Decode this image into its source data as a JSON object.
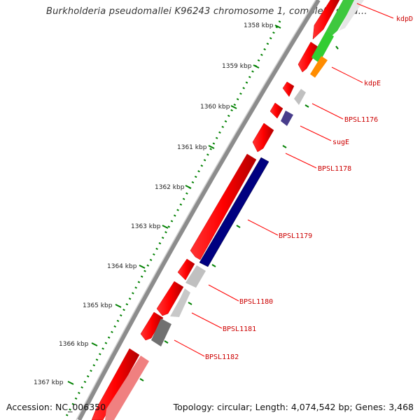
{
  "title": "Burkholderia pseudomallei K96243 chromosome 1, complete sequ...",
  "footer": {
    "accession": "Accession: NC_006350",
    "topology": "Topology: circular; Length: 4,074,542 bp; Genes: 3,468"
  },
  "ruler_ticks": [
    "1358 kbp",
    "1359 kbp",
    "1360 kbp",
    "1361 kbp",
    "1362 kbp",
    "1363 kbp",
    "1364 kbp",
    "1365 kbp",
    "1366 kbp",
    "1367 kbp"
  ],
  "gene_labels": [
    "kdpD",
    "kdpE",
    "BPSL1176",
    "sugE",
    "BPSL1178",
    "BPSL1179",
    "BPSL1180",
    "BPSL1181",
    "BPSL1182"
  ],
  "colors": {
    "forward_feature": "#ff0000",
    "light_feature": "#f08080",
    "reverse_blue": "#000080",
    "reverse_purple": "#483d8b",
    "grey_feature": "#c0c0c0",
    "dark_grey_feature": "#707070",
    "green_feature": "#32cd32",
    "orange_feature": "#ff8c00",
    "backbone": "#808080",
    "ruler_dots": "#008000",
    "label_text": "#cc0000"
  }
}
